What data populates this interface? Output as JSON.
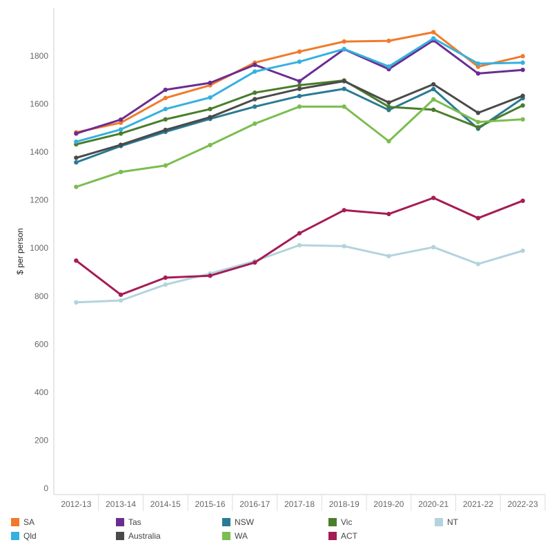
{
  "chart_data": {
    "type": "line",
    "title": "",
    "xlabel": "",
    "ylabel": "$ per person",
    "ylim": [
      0,
      2000
    ],
    "yticks": [
      0,
      200,
      400,
      600,
      800,
      1000,
      1200,
      1400,
      1600,
      1800
    ],
    "categories": [
      "2012-13",
      "2013-14",
      "2014-15",
      "2015-16",
      "2016-17",
      "2017-18",
      "2018-19",
      "2019-20",
      "2020-21",
      "2021-22",
      "2022-23"
    ],
    "grid": false,
    "legend_position": "bottom",
    "series": [
      {
        "name": "SA",
        "color": "#f07a2c",
        "values": [
          1482,
          1522,
          1625,
          1678,
          1772,
          1818,
          1860,
          1863,
          1899,
          1755,
          1799
        ]
      },
      {
        "name": "Tas",
        "color": "#6b2c91",
        "values": [
          1477,
          1535,
          1659,
          1688,
          1763,
          1695,
          1828,
          1745,
          1865,
          1727,
          1742
        ]
      },
      {
        "name": "NSW",
        "color": "#2a7a94",
        "values": [
          1357,
          1425,
          1484,
          1538,
          1589,
          1633,
          1663,
          1575,
          1662,
          1497,
          1624
        ]
      },
      {
        "name": "Vic",
        "color": "#4a7d2c",
        "values": [
          1432,
          1477,
          1536,
          1579,
          1647,
          1678,
          1698,
          1588,
          1576,
          1503,
          1594
        ]
      },
      {
        "name": "NT",
        "color": "#b3d3de",
        "values": [
          774,
          782,
          848,
          894,
          946,
          1012,
          1008,
          967,
          1004,
          934,
          989
        ]
      },
      {
        "name": "Qld",
        "color": "#35b1de",
        "values": [
          1443,
          1494,
          1579,
          1627,
          1735,
          1776,
          1829,
          1756,
          1873,
          1768,
          1772
        ]
      },
      {
        "name": "Australia",
        "color": "#4a4a4a",
        "values": [
          1376,
          1430,
          1492,
          1545,
          1620,
          1663,
          1695,
          1606,
          1682,
          1563,
          1634
        ]
      },
      {
        "name": "WA",
        "color": "#7bbd50",
        "values": [
          1255,
          1317,
          1344,
          1429,
          1518,
          1589,
          1589,
          1445,
          1619,
          1525,
          1536
        ]
      },
      {
        "name": "ACT",
        "color": "#a51c55",
        "values": [
          948,
          806,
          877,
          885,
          940,
          1062,
          1158,
          1142,
          1209,
          1125,
          1197
        ]
      }
    ],
    "legend_order": [
      "SA",
      "Tas",
      "NSW",
      "Vic",
      "NT",
      "Qld",
      "Australia",
      "WA",
      "ACT"
    ]
  }
}
